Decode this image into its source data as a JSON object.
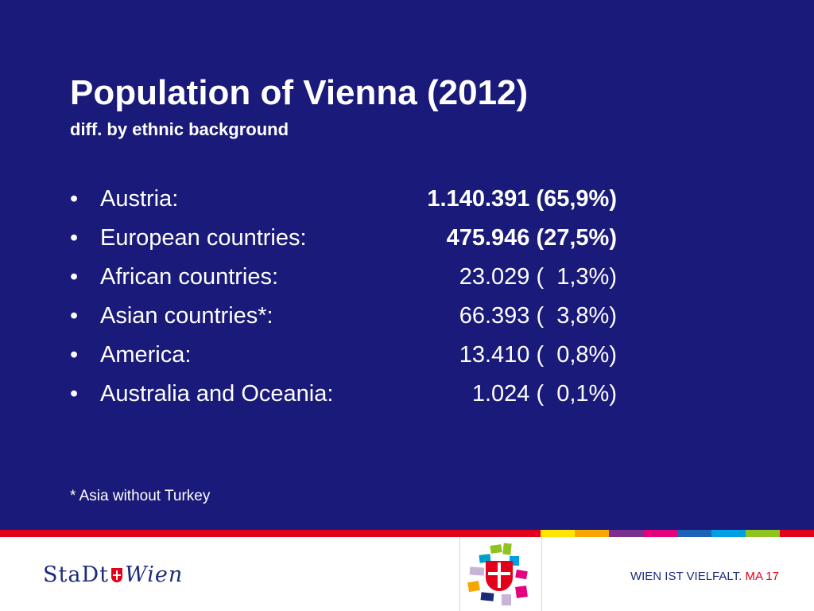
{
  "title": "Population of Vienna (2012)",
  "subtitle": "diff. by ethnic background",
  "bullet_char": "•",
  "rows": [
    {
      "label": "Austria:",
      "value": "1.140.391 (65,9%)",
      "bold": true
    },
    {
      "label": "European countries:",
      "value": "475.946 (27,5%)",
      "bold": true
    },
    {
      "label": "African countries:",
      "value": "23.029 (  1,3%)",
      "bold": false
    },
    {
      "label": "Asian countries*:",
      "value": "66.393 (  3,8%)",
      "bold": false
    },
    {
      "label": "America:",
      "value": "13.410 (  0,8%)",
      "bold": false
    },
    {
      "label": "Australia and Oceania:",
      "value": "1.024 (  0,1%)",
      "bold": false
    }
  ],
  "footnote": "* Asia without Turkey",
  "footer": {
    "logo_left": "StaDt",
    "logo_right": "Wien",
    "claim": "WIEN IST VIELFALT.",
    "claim_tag": "MA 17"
  },
  "colors": {
    "background": "#1a1a7a",
    "stripe_red": "#e2001a",
    "stripe_segments": [
      "#ffe500",
      "#f7a600",
      "#7b2f8e",
      "#e5007e",
      "#1c63b7",
      "#009fe3",
      "#8fc31f",
      "#e2001a"
    ]
  }
}
